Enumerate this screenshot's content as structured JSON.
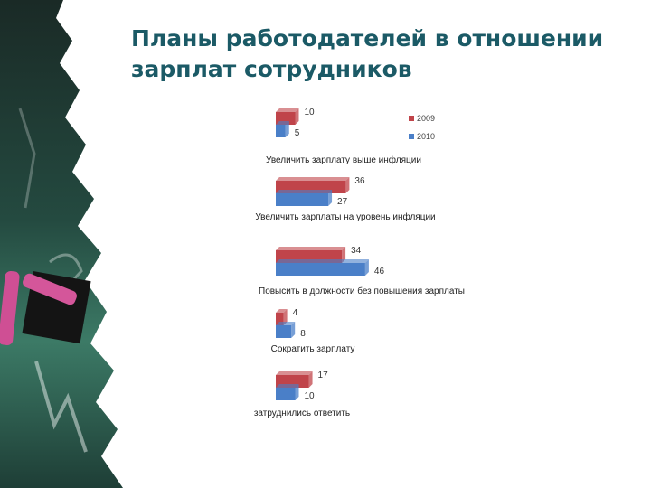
{
  "slide": {
    "title_line1": "Планы работодателей в отношении",
    "title_line2": "зарплат сотрудников"
  },
  "chart_data": {
    "type": "bar",
    "orientation": "horizontal",
    "categories": [
      "Увеличить зарплату выше инфляции",
      "Увеличить зарплаты на уровень инфляции",
      "Повысить в должности без повышения зарплаты",
      "Сократить зарплату",
      "затруднились ответить"
    ],
    "series": [
      {
        "name": "2009",
        "values": [
          10,
          36,
          34,
          4,
          17
        ],
        "color": "#c0444a"
      },
      {
        "name": "2010",
        "values": [
          5,
          27,
          46,
          8,
          10
        ],
        "color": "#4a7fc8"
      }
    ],
    "legend_position": "right",
    "grid": false
  }
}
